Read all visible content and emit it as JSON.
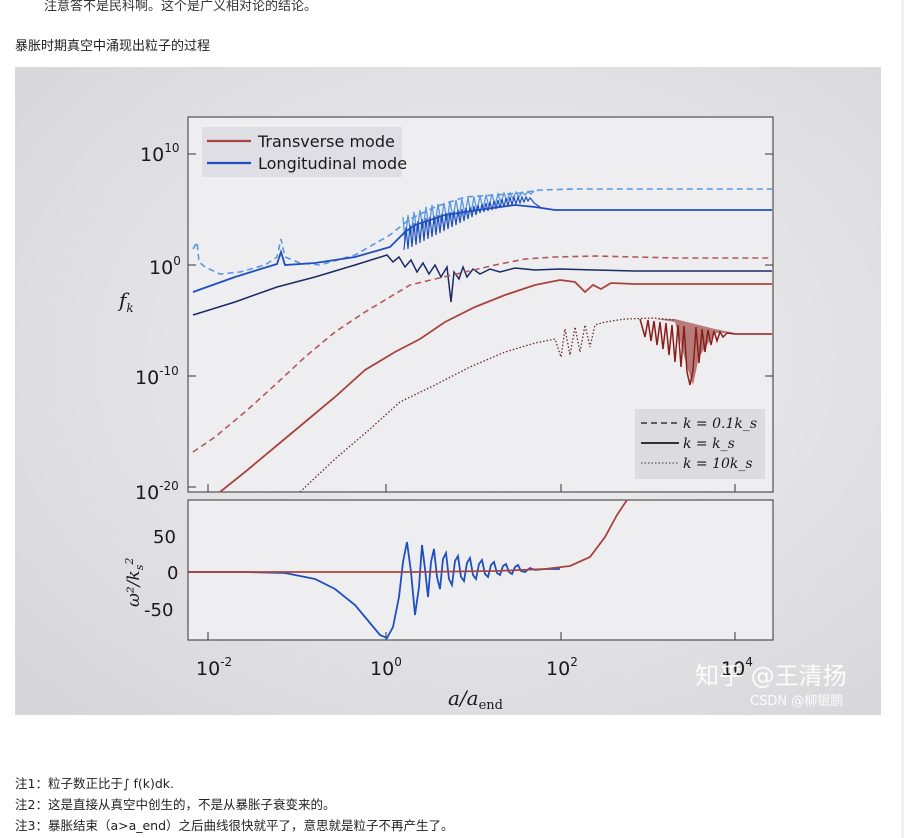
{
  "article": {
    "top_line": "注意答不是民科啊。这个是广义相对论的结论。",
    "caption": "暴胀时期真空中涌现出粒子的过程",
    "notes": [
      "注1：粒子数正比于∫ f(k)dk.",
      "注2：这是直接从真空中创生的，不是从暴胀子衰变来的。",
      "注3：暴胀结束（a>a_end）之后曲线很快就平了，意思就是粒子不再产生了。"
    ]
  },
  "figure": {
    "watermark_main": "知乎 @王清扬",
    "watermark_sub": "CSDN @柳银鹏",
    "top_panel": {
      "ylabel": "f_k",
      "yticks": [
        "10^10",
        "10^0",
        "10^-10",
        "10^-20"
      ],
      "legend_modes": [
        "Transverse mode",
        "Longitudinal mode"
      ],
      "legend_k": [
        "k = 0.1k_s",
        "k = k_s",
        "k = 10k_s"
      ]
    },
    "bottom_panel": {
      "ylabel": "ω²/k_s²",
      "yticks": [
        "50",
        "0",
        "-50"
      ]
    },
    "xaxis": {
      "label": "a/a_end",
      "ticks": [
        "10^-2",
        "10^0",
        "10^2",
        "10^4"
      ]
    },
    "colors": {
      "transverse": "#a8443f",
      "transverse_dark": "#8a1f1a",
      "longitudinal": "#1f4fbf",
      "longitudinal_light": "#5a97df",
      "longitudinal_dark": "#1b2a66",
      "axes": "#222222"
    }
  }
}
